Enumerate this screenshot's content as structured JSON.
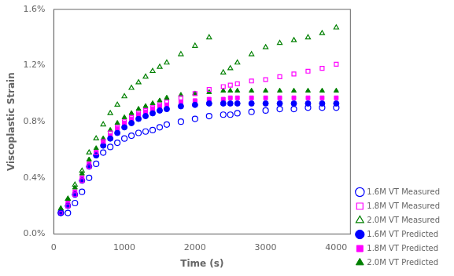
{
  "chart_data": {
    "type": "scatter",
    "title": "",
    "xlabel": "Time (s)",
    "ylabel": "Viscoplastic Strain",
    "x": [
      100,
      200,
      300,
      400,
      500,
      600,
      700,
      800,
      900,
      1000,
      1100,
      1200,
      1300,
      1400,
      1500,
      1600,
      1800,
      2000,
      2200,
      2400,
      2500,
      2600,
      2800,
      3000,
      3200,
      3400,
      3600,
      3800,
      4000
    ],
    "series": [
      {
        "name": "1.6M VT Measured",
        "color": "blue",
        "marker": "circle-open",
        "values": [
          0.0015,
          0.0015,
          0.0022,
          0.003,
          0.004,
          0.005,
          0.0058,
          0.0062,
          0.0065,
          0.0068,
          0.007,
          0.0072,
          0.0073,
          0.0074,
          0.0076,
          0.0078,
          0.008,
          0.0082,
          0.0084,
          0.0085,
          0.0085,
          0.0086,
          0.0087,
          0.0088,
          0.0089,
          0.0089,
          0.009,
          0.009,
          0.009
        ]
      },
      {
        "name": "1.8M VT Measured",
        "color": "magenta",
        "marker": "square-open",
        "values": [
          0.0015,
          0.002,
          0.0028,
          0.0038,
          0.0048,
          0.0058,
          0.0066,
          0.0072,
          0.0076,
          0.008,
          0.0083,
          0.0086,
          0.0088,
          0.009,
          0.0092,
          0.0094,
          0.0097,
          0.01,
          0.0103,
          0.0105,
          0.0106,
          0.0107,
          0.0109,
          0.011,
          0.0112,
          0.0114,
          0.0116,
          0.0118,
          0.0121
        ]
      },
      {
        "name": "2.0M VT Measured",
        "color": "green",
        "marker": "triangle-open",
        "values": [
          0.0018,
          0.0025,
          0.0035,
          0.0045,
          0.0058,
          0.0068,
          0.0078,
          0.0086,
          0.0092,
          0.0098,
          0.0104,
          0.0108,
          0.0112,
          0.0116,
          0.0119,
          0.0122,
          0.0128,
          0.0134,
          0.014,
          0.0115,
          0.0118,
          0.0122,
          0.0128,
          0.0133,
          0.0136,
          0.0138,
          0.014,
          0.0143,
          0.0147
        ]
      },
      {
        "name": "1.6M VT Predicted",
        "color": "blue",
        "marker": "circle",
        "values": [
          0.0015,
          0.002,
          0.0028,
          0.0038,
          0.0048,
          0.0056,
          0.0063,
          0.0068,
          0.0072,
          0.0076,
          0.0079,
          0.0082,
          0.0084,
          0.0086,
          0.0088,
          0.0089,
          0.0091,
          0.0092,
          0.0093,
          0.0093,
          0.0093,
          0.0093,
          0.0093,
          0.0093,
          0.0093,
          0.0093,
          0.0093,
          0.0093,
          0.0093
        ]
      },
      {
        "name": "1.8M VT Predicted",
        "color": "magenta",
        "marker": "square",
        "values": [
          0.0015,
          0.0022,
          0.003,
          0.004,
          0.005,
          0.0058,
          0.0065,
          0.007,
          0.0075,
          0.0079,
          0.0082,
          0.0085,
          0.0087,
          0.0089,
          0.0091,
          0.0092,
          0.0094,
          0.0095,
          0.0096,
          0.0096,
          0.0097,
          0.0097,
          0.0097,
          0.0097,
          0.0097,
          0.0097,
          0.0097,
          0.0097,
          0.0097
        ]
      },
      {
        "name": "2.0M VT Predicted",
        "color": "green",
        "marker": "triangle",
        "values": [
          0.0018,
          0.0025,
          0.0033,
          0.0043,
          0.0053,
          0.0061,
          0.0068,
          0.0074,
          0.0079,
          0.0083,
          0.0086,
          0.0089,
          0.0091,
          0.0093,
          0.0095,
          0.0097,
          0.0099,
          0.01,
          0.0101,
          0.0102,
          0.0102,
          0.0102,
          0.0102,
          0.0102,
          0.0102,
          0.0102,
          0.0102,
          0.0102,
          0.0102
        ]
      }
    ],
    "xlim": [
      0,
      4200
    ],
    "xticks": [
      0,
      1000,
      2000,
      3000,
      4000
    ],
    "ylim": [
      0,
      0.016
    ],
    "yticks": [
      {
        "value": 0.0,
        "label": "0.0%"
      },
      {
        "value": 0.004,
        "label": "0.4%"
      },
      {
        "value": 0.008,
        "label": "0.8%"
      },
      {
        "value": 0.012,
        "label": "1.2%"
      },
      {
        "value": 0.016,
        "label": "1.6%"
      }
    ],
    "grid": false,
    "legend": "lower right"
  }
}
